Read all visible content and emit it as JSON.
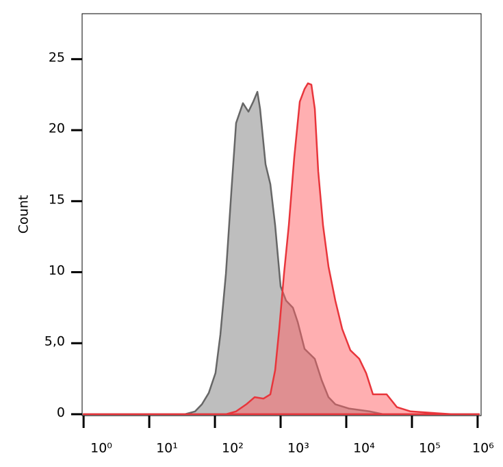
{
  "chart_data": {
    "type": "area",
    "y_label": "Count",
    "xscale": "log",
    "xlim": [
      0.95,
      1130000
    ],
    "ylim": [
      -0.1,
      28.2
    ],
    "xticks": [
      {
        "value": 1,
        "label": "10⁰"
      },
      {
        "value": 10,
        "label": "10¹"
      },
      {
        "value": 100,
        "label": "10²"
      },
      {
        "value": 1000,
        "label": "10³"
      },
      {
        "value": 10000,
        "label": "10⁴"
      },
      {
        "value": 100000,
        "label": "10⁵"
      },
      {
        "value": 1000000,
        "label": "10⁶"
      }
    ],
    "yticks": [
      0,
      {
        "value": 5,
        "label": "5,0"
      },
      10,
      15,
      20,
      25
    ],
    "series": [
      {
        "color": "#666666",
        "fill": "#bebebe",
        "x": [
          1,
          34.8,
          49.9,
          63.4,
          80.6,
          102,
          121,
          147,
          178,
          210,
          267,
          324,
          383,
          443,
          487,
          590,
          698,
          826,
          1000,
          1211,
          1541,
          1820,
          2317,
          3313,
          4217,
          5360,
          6810,
          11000,
          22600,
          36500,
          1050000
        ],
        "values": [
          0,
          0,
          0.2,
          0.7,
          1.5,
          2.9,
          5.6,
          9.9,
          15.7,
          20.5,
          21.9,
          21.3,
          22.0,
          22.7,
          21.5,
          17.6,
          16.2,
          13.3,
          9.0,
          8.0,
          7.5,
          6.5,
          4.6,
          3.9,
          2.4,
          1.2,
          0.7,
          0.4,
          0.2,
          0,
          0
        ]
      },
      {
        "color": "#e8353b",
        "fill": "rgba(255,95,100,0.5)",
        "x": [
          1,
          147,
          210,
          301,
          402,
          549,
          698,
          826,
          953,
          1127,
          1334,
          1615,
          1958,
          2317,
          2610,
          2943,
          3319,
          3741,
          4426,
          5360,
          6810,
          8670,
          11550,
          15780,
          20050,
          25470,
          41200,
          59000,
          95300,
          196000,
          402000,
          1050000
        ],
        "values": [
          0,
          0,
          0.2,
          0.7,
          1.2,
          1.1,
          1.4,
          3.1,
          6.0,
          9.9,
          13.3,
          18.1,
          22.0,
          22.9,
          23.3,
          23.2,
          21.5,
          17.1,
          13.3,
          10.4,
          8.0,
          6.0,
          4.5,
          3.9,
          2.9,
          1.4,
          1.4,
          0.5,
          0.2,
          0.1,
          0,
          0
        ]
      }
    ]
  }
}
